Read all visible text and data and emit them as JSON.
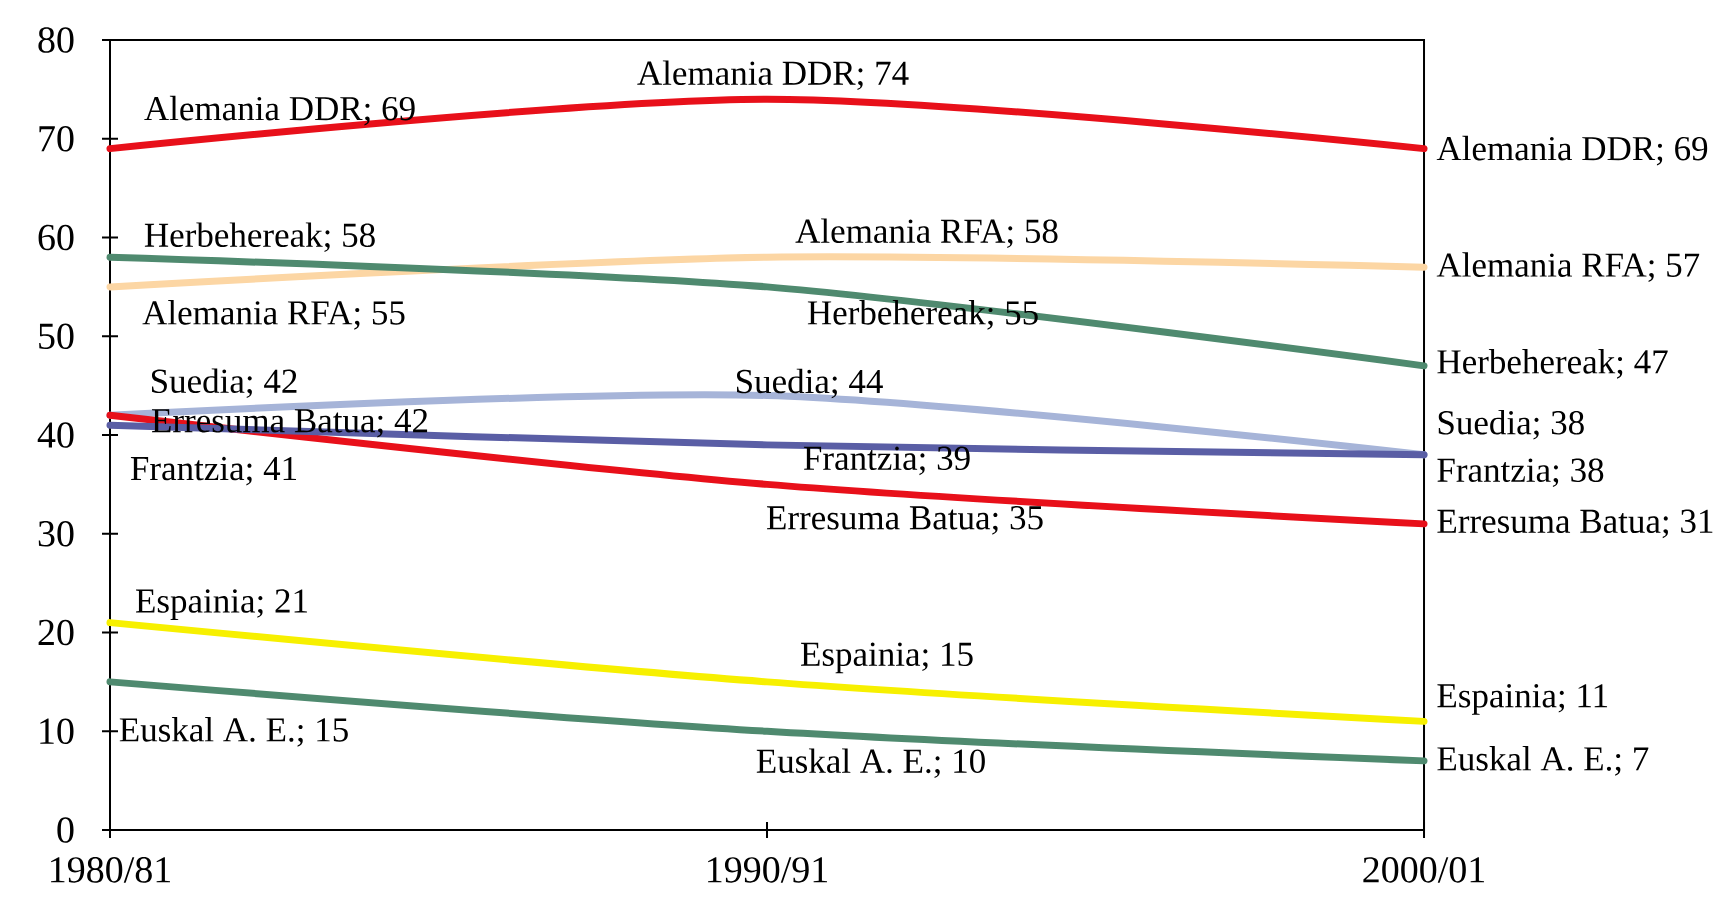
{
  "chart_data": {
    "type": "line",
    "categories": [
      "1980/81",
      "1990/91",
      "2000/01"
    ],
    "ylim": [
      0,
      80
    ],
    "yticks": [
      0,
      10,
      20,
      30,
      40,
      50,
      60,
      70,
      80
    ],
    "series": [
      {
        "color": "#e8101a",
        "values": [
          69,
          74,
          69
        ],
        "value_labels": [
          "Alemania DDR; 69",
          "Alemania DDR; 74",
          "Alemania DDR; 69"
        ]
      },
      {
        "color": "#fcd6a4",
        "values": [
          55,
          58,
          57
        ],
        "value_labels": [
          "Alemania RFA; 55",
          "Alemania RFA; 58",
          "Alemania RFA; 57"
        ]
      },
      {
        "color": "#4f8a6f",
        "values": [
          58,
          55,
          47
        ],
        "value_labels": [
          "Herbehereak; 58",
          "Herbehereak; 55",
          "Herbehereak; 47"
        ]
      },
      {
        "color": "#a6b4d8",
        "values": [
          42,
          44,
          38
        ],
        "value_labels": [
          "Suedia; 42",
          "Suedia; 44",
          "Suedia; 38"
        ]
      },
      {
        "color": "#e8101a",
        "values": [
          42,
          35,
          31
        ],
        "value_labels": [
          "Erresuma Batua; 42",
          "Erresuma Batua; 35",
          "Erresuma Batua; 31"
        ]
      },
      {
        "color": "#5a5ea5",
        "values": [
          41,
          39,
          38
        ],
        "value_labels": [
          "Frantzia; 41",
          "Frantzia; 39",
          "Frantzia; 38"
        ]
      },
      {
        "color": "#f7f000",
        "values": [
          21,
          15,
          11
        ],
        "value_labels": [
          "Espainia; 21",
          "Espainia; 15",
          "Espainia; 11"
        ]
      },
      {
        "color": "#4f8a6f",
        "values": [
          15,
          10,
          7
        ],
        "value_labels": [
          "Euskal A. E.; 15",
          "Euskal A. E.; 10",
          "Euskal A. E.; 7"
        ]
      }
    ]
  }
}
